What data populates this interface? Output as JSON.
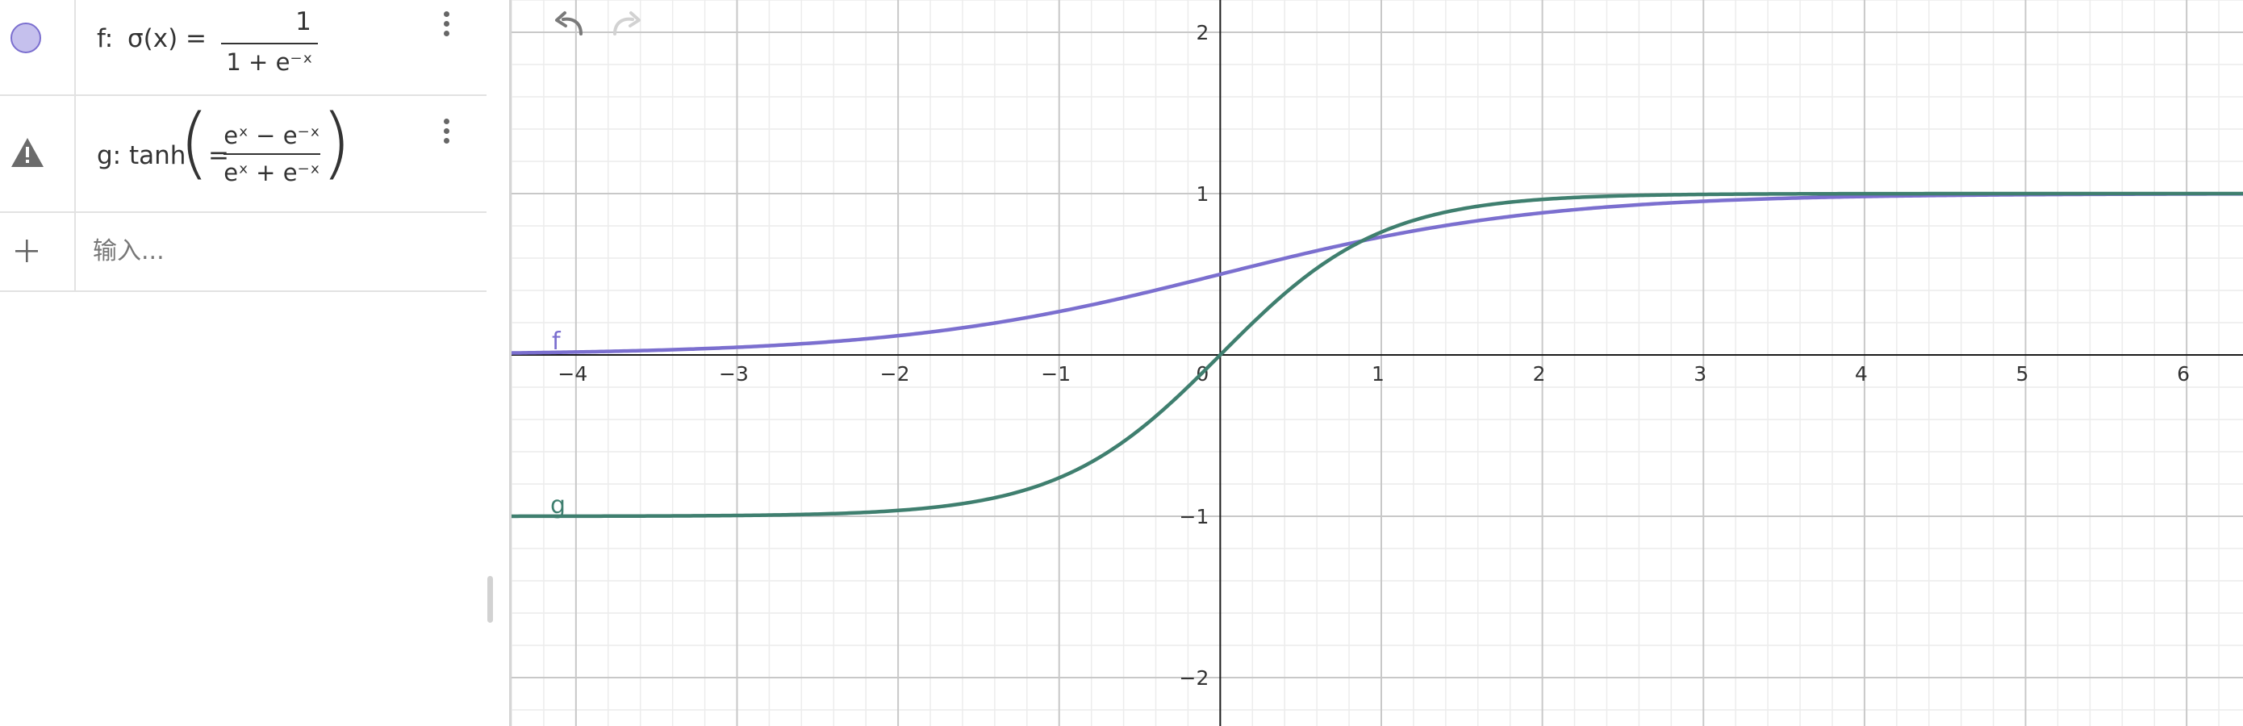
{
  "algebra": {
    "f": {
      "name": "f:",
      "lhs": "σ(x) =",
      "numerator": "1",
      "denominator": "1 + e⁻ˣ",
      "color": "#7b6fcf"
    },
    "g": {
      "name": "g: tanh",
      "eq": "=",
      "numerator": "eˣ − e⁻ˣ",
      "denominator": "eˣ + e⁻ˣ",
      "paren_open": "(",
      "paren_close": ")",
      "warning_icon": "warning-triangle-icon"
    },
    "input": {
      "placeholder": "输入..."
    },
    "icons": {
      "more": "vertical-dots-icon",
      "add": "plus-icon",
      "undo": "undo-icon",
      "redo": "redo-icon"
    }
  },
  "graph": {
    "x_ticks": [
      "−4",
      "−3",
      "−2",
      "−1",
      "0",
      "1",
      "2",
      "3",
      "4",
      "5",
      "6"
    ],
    "y_ticks": [
      "2",
      "1",
      "−1",
      "−2"
    ],
    "curve_labels": {
      "f": "f",
      "g": "g"
    },
    "colors": {
      "f": "#7b6fcf",
      "g": "#3f7f6f",
      "axis": "#1a1a1a",
      "major_grid": "#c8c8c8",
      "minor_grid": "#ececec"
    }
  },
  "chart_data": {
    "type": "line",
    "xlim": [
      -4.4,
      6.35
    ],
    "ylim": [
      -2.3,
      2.2
    ],
    "grid": true,
    "series": [
      {
        "name": "f",
        "function": "1/(1+exp(-x))"
      },
      {
        "name": "g",
        "function": "tanh(x)"
      }
    ]
  }
}
